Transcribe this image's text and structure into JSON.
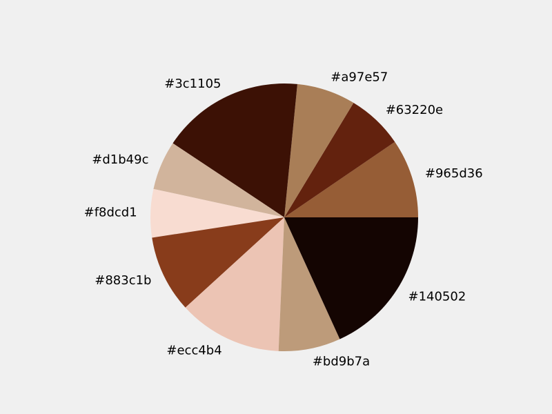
{
  "background": "#f0f0f0",
  "chart_data": {
    "type": "pie",
    "title": "",
    "start_angle_deg": 0,
    "direction": "counterclockwise",
    "slices": [
      {
        "label": "#965d36",
        "value": 9.8,
        "color": "#965d36"
      },
      {
        "label": "#63220e",
        "value": 7.0,
        "color": "#63220e"
      },
      {
        "label": "#a97e57",
        "value": 7.3,
        "color": "#a97e57"
      },
      {
        "label": "#3c1105",
        "value": 17.7,
        "color": "#3c1105"
      },
      {
        "label": "#d1b49c",
        "value": 6.1,
        "color": "#d1b49c"
      },
      {
        "label": "#f8dcd1",
        "value": 6.0,
        "color": "#f8dcd1"
      },
      {
        "label": "#883c1b",
        "value": 9.6,
        "color": "#883c1b"
      },
      {
        "label": "#ecc4b4",
        "value": 12.9,
        "color": "#ecc4b4"
      },
      {
        "label": "#bd9b7a",
        "value": 7.7,
        "color": "#bd9b7a"
      },
      {
        "label": "#140502",
        "value": 18.7,
        "color": "#140502"
      }
    ]
  }
}
